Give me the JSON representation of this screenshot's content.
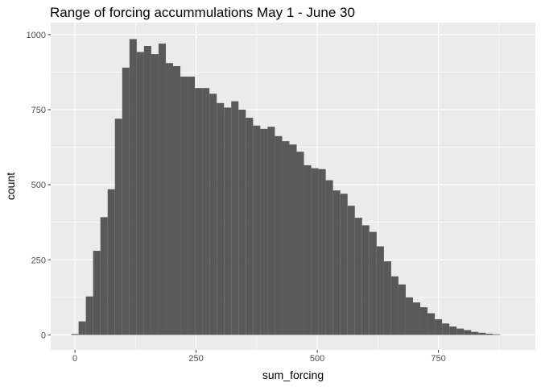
{
  "chart_data": {
    "type": "bar",
    "title": "Range of forcing accummulations May 1 - June 30",
    "xlabel": "sum_forcing",
    "ylabel": "count",
    "xlim": [
      -50,
      950
    ],
    "ylim": [
      -50,
      1040
    ],
    "x_ticks": [
      0,
      250,
      500,
      750
    ],
    "y_ticks": [
      0,
      250,
      500,
      750,
      1000
    ],
    "x_tick_labels": [
      "0",
      "250",
      "500",
      "750"
    ],
    "y_tick_labels": [
      "0",
      "250",
      "500",
      "750",
      "1000"
    ],
    "bin_width": 15,
    "bin_start": -7.5,
    "values": [
      3,
      45,
      128,
      280,
      392,
      485,
      720,
      890,
      985,
      942,
      962,
      935,
      970,
      905,
      895,
      860,
      860,
      822,
      822,
      803,
      772,
      757,
      778,
      750,
      723,
      697,
      686,
      693,
      662,
      645,
      634,
      610,
      565,
      555,
      552,
      515,
      481,
      470,
      430,
      390,
      365,
      343,
      295,
      245,
      195,
      168,
      125,
      108,
      92,
      72,
      52,
      38,
      28,
      21,
      16,
      10,
      7,
      4,
      2
    ],
    "bar_color": "#595959",
    "panel_color": "#ebebeb",
    "grid": true,
    "grid_color": "#ffffff"
  }
}
